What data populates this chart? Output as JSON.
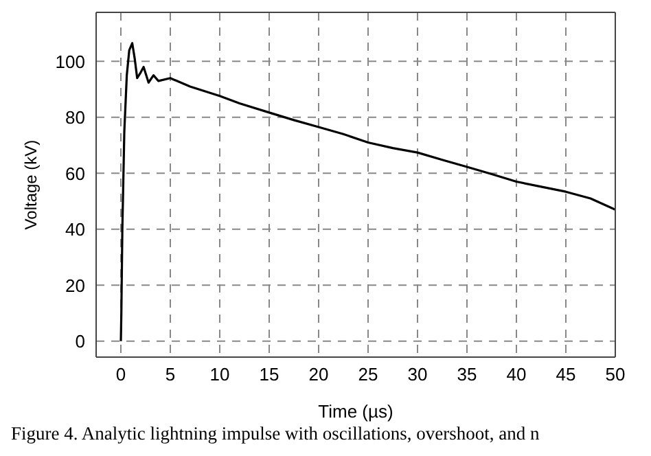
{
  "chart_data": {
    "type": "line",
    "xlabel": "Time  (µs)",
    "ylabel": "Voltage (kV)",
    "annotations": [
      "Figure 4. Analytic lightning impulse with oscillations, overshoot, and n"
    ],
    "series": [
      {
        "color": "#000000",
        "x": [
          0,
          0.05,
          0.15,
          0.35,
          0.6,
          0.85,
          1.15,
          1.4,
          1.65,
          2,
          2.3,
          2.8,
          3.3,
          3.8,
          5,
          7,
          10,
          12,
          15,
          17.5,
          20,
          22.5,
          25,
          27.5,
          30,
          32.5,
          35,
          37.5,
          40,
          42.5,
          45,
          47.5,
          50
        ],
        "values": [
          0,
          10,
          40,
          75,
          95,
          104,
          106.5,
          101,
          94,
          96,
          98,
          92.4,
          95,
          93,
          94,
          91,
          87.6,
          85,
          81.7,
          79,
          76.5,
          74,
          71,
          69,
          67.4,
          64.8,
          62.3,
          59.7,
          57,
          55.2,
          53.4,
          51,
          47
        ]
      }
    ],
    "xlim": [
      -2.5,
      50
    ],
    "xticks": [
      0,
      5,
      10,
      15,
      20,
      25,
      30,
      35,
      40,
      45,
      50
    ],
    "ylim": [
      -5.7,
      117.5
    ],
    "yticks": [
      0,
      20,
      40,
      60,
      80,
      100
    ],
    "grid": true,
    "legend": false,
    "marker": "none",
    "line_style": "solid"
  }
}
